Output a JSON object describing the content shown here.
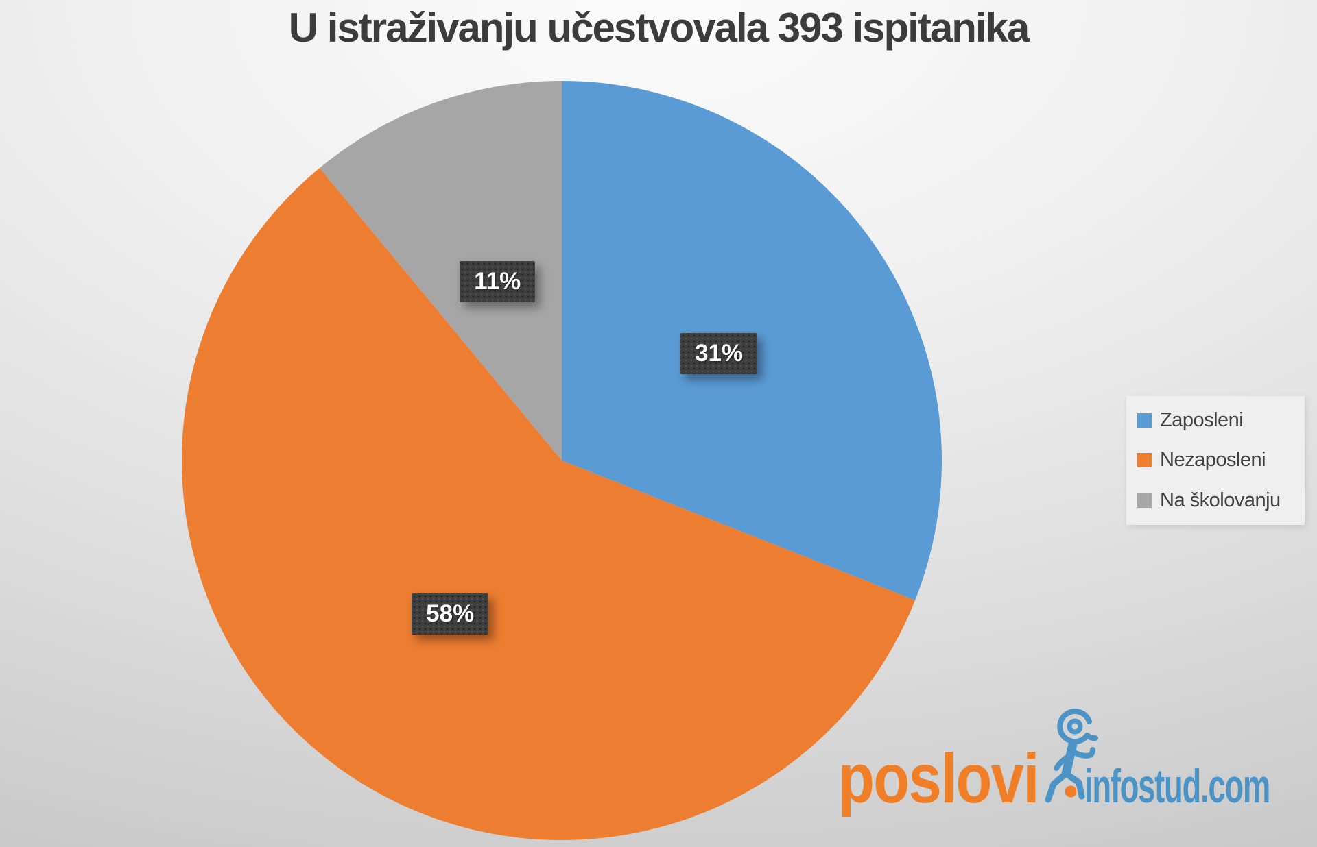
{
  "title": "U istraživanju učestvovala 393 ispitanika",
  "legend": {
    "items": [
      {
        "label": "Zaposleni",
        "color": "#5B9BD5"
      },
      {
        "label": "Nezaposleni",
        "color": "#ED7D31"
      },
      {
        "label": "Na školovanju",
        "color": "#A6A6A6"
      }
    ]
  },
  "logo": {
    "brand": "poslovi",
    "site": "infostud.com",
    "brand_color": "#F07E26",
    "site_color": "#4D94C6"
  },
  "chart_data": {
    "type": "pie",
    "title": "U istraživanju učestvovala 393 ispitanika",
    "sample_size": 393,
    "categories": [
      "Zaposleni",
      "Nezaposleni",
      "Na školovanju"
    ],
    "values": [
      31,
      58,
      11
    ],
    "unit": "%",
    "data_labels": [
      "31%",
      "58%",
      "11%"
    ],
    "colors": [
      "#5B9BD5",
      "#ED7D31",
      "#A6A6A6"
    ],
    "start_angle_deg": 0,
    "direction": "clockwise",
    "legend_position": "right",
    "label_box_color": "#3F3F3F",
    "label_text_color": "#FFFFFF"
  }
}
